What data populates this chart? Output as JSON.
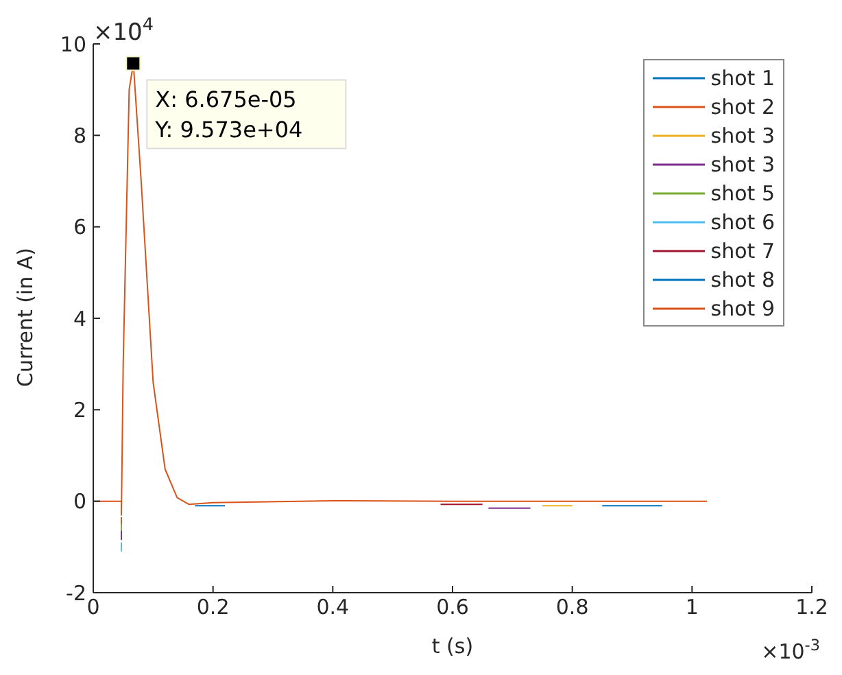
{
  "chart_data": {
    "type": "line",
    "xlabel": "t (s)",
    "ylabel": "Current (in A)",
    "xlim": [
      0,
      1.2
    ],
    "ylim": [
      -2,
      10
    ],
    "xticks": [
      0,
      0.2,
      0.4,
      0.6,
      0.8,
      1,
      1.2
    ],
    "yticks": [
      -2,
      0,
      2,
      4,
      6,
      8,
      10
    ],
    "grid": false,
    "legend": "top right",
    "marker": "none",
    "line_style": "solid",
    "annotations": [
      {
        "text": "X: 6.675e-05\nY: 9.573e+04",
        "x": 0.06675,
        "y": 9.573
      },
      "×10$^{4}$",
      "×10$^{-3}$"
    ],
    "series": [
      {
        "name": "shot 1",
        "color": "#0072bd",
        "x": [
          0.17,
          0.22
        ],
        "values": [
          -0.1,
          -0.1
        ]
      },
      {
        "name": "shot 2",
        "color": "#d95319",
        "x": [
          0.047,
          0.047
        ],
        "values": [
          -0.35,
          -0.5
        ]
      },
      {
        "name": "shot 3",
        "color": "#edb120",
        "x": [
          0.75,
          0.8
        ],
        "values": [
          -0.1,
          -0.1
        ]
      },
      {
        "name": "shot 3",
        "color": "#7e2f8e",
        "x": [
          0.047,
          0.047,
          null,
          0.66,
          0.73
        ],
        "values": [
          -0.65,
          -0.85,
          null,
          -0.15,
          -0.15
        ]
      },
      {
        "name": "shot 5",
        "color": "#77ac30",
        "x": [
          0.047,
          0.047
        ],
        "values": [
          -0.5,
          -0.65
        ]
      },
      {
        "name": "shot 6",
        "color": "#4dbeee",
        "x": [
          0.047,
          0.047
        ],
        "values": [
          -0.9,
          -1.1
        ]
      },
      {
        "name": "shot 7",
        "color": "#a2142f",
        "x": [
          0.58,
          0.65
        ],
        "values": [
          -0.07,
          -0.07
        ]
      },
      {
        "name": "shot 8",
        "color": "#0072bd",
        "x": [
          0.85,
          0.95
        ],
        "values": [
          -0.1,
          -0.1
        ]
      },
      {
        "name": "shot 9",
        "color": "#d95319",
        "x": [
          0,
          0.047,
          0.047,
          0.05,
          0.06,
          0.067,
          0.08,
          0.1,
          0.12,
          0.14,
          0.16,
          0.2,
          0.4,
          0.6,
          1.025
        ],
        "values": [
          0,
          0,
          -0.3,
          3,
          9,
          9.57,
          7,
          2.6,
          0.7,
          0.08,
          -0.07,
          -0.03,
          0.01,
          0,
          0
        ]
      }
    ]
  }
}
